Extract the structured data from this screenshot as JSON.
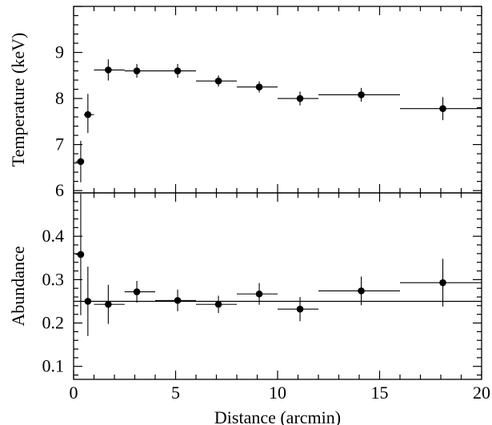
{
  "chart_data": [
    {
      "type": "scatter",
      "panel": "top",
      "ylabel": "Temperature (keV)",
      "xlabel": "",
      "xlim": [
        0,
        20
      ],
      "ylim": [
        5.95,
        10
      ],
      "yticks": [
        "6",
        "7",
        "8",
        "9"
      ],
      "points": [
        {
          "x": 0.35,
          "xerr": [
            0.25,
            0.15
          ],
          "y": 6.63,
          "yerr": [
            0.45,
            0.45
          ]
        },
        {
          "x": 0.7,
          "xerr": [
            0.2,
            0.3
          ],
          "y": 7.65,
          "yerr": [
            0.4,
            0.45
          ]
        },
        {
          "x": 1.7,
          "xerr": [
            0.7,
            0.8
          ],
          "y": 8.62,
          "yerr": [
            0.23,
            0.23
          ]
        },
        {
          "x": 3.1,
          "xerr": [
            0.6,
            0.9
          ],
          "y": 8.6,
          "yerr": [
            0.15,
            0.15
          ]
        },
        {
          "x": 5.1,
          "xerr": [
            1.1,
            0.9
          ],
          "y": 8.6,
          "yerr": [
            0.15,
            0.15
          ]
        },
        {
          "x": 7.1,
          "xerr": [
            1.1,
            0.9
          ],
          "y": 8.38,
          "yerr": [
            0.12,
            0.12
          ]
        },
        {
          "x": 9.1,
          "xerr": [
            1.1,
            0.9
          ],
          "y": 8.25,
          "yerr": [
            0.12,
            0.12
          ]
        },
        {
          "x": 11.1,
          "xerr": [
            1.1,
            0.9
          ],
          "y": 8.0,
          "yerr": [
            0.15,
            0.15
          ]
        },
        {
          "x": 14.1,
          "xerr": [
            2.1,
            1.9
          ],
          "y": 8.08,
          "yerr": [
            0.15,
            0.15
          ]
        },
        {
          "x": 18.1,
          "xerr": [
            2.1,
            1.9
          ],
          "y": 7.78,
          "yerr": [
            0.25,
            0.25
          ]
        }
      ]
    },
    {
      "type": "scatter",
      "panel": "bottom",
      "ylabel": "Abundance",
      "xlabel": "Distance (arcmin)",
      "xlim": [
        0,
        20
      ],
      "ylim": [
        0.07,
        0.5
      ],
      "xticks": [
        "0",
        "5",
        "10",
        "15",
        "20"
      ],
      "yticks": [
        "0.1",
        "0.2",
        "0.3",
        "0.4"
      ],
      "reference_line": 0.25,
      "points": [
        {
          "x": 0.35,
          "xerr": [
            0.25,
            0.15
          ],
          "y": 0.358,
          "yerr": [
            0.14,
            0.14
          ]
        },
        {
          "x": 0.7,
          "xerr": [
            0.2,
            0.3
          ],
          "y": 0.25,
          "yerr": [
            0.08,
            0.08
          ]
        },
        {
          "x": 1.7,
          "xerr": [
            0.7,
            0.8
          ],
          "y": 0.243,
          "yerr": [
            0.045,
            0.045
          ]
        },
        {
          "x": 3.1,
          "xerr": [
            0.6,
            0.9
          ],
          "y": 0.272,
          "yerr": [
            0.025,
            0.025
          ]
        },
        {
          "x": 5.1,
          "xerr": [
            1.1,
            0.9
          ],
          "y": 0.252,
          "yerr": [
            0.025,
            0.025
          ]
        },
        {
          "x": 7.1,
          "xerr": [
            1.1,
            0.9
          ],
          "y": 0.243,
          "yerr": [
            0.02,
            0.02
          ]
        },
        {
          "x": 9.1,
          "xerr": [
            1.1,
            0.9
          ],
          "y": 0.267,
          "yerr": [
            0.025,
            0.025
          ]
        },
        {
          "x": 11.1,
          "xerr": [
            1.1,
            0.9
          ],
          "y": 0.232,
          "yerr": [
            0.028,
            0.028
          ]
        },
        {
          "x": 14.1,
          "xerr": [
            2.1,
            1.9
          ],
          "y": 0.274,
          "yerr": [
            0.033,
            0.033
          ]
        },
        {
          "x": 18.1,
          "xerr": [
            2.1,
            1.9
          ],
          "y": 0.293,
          "yerr": [
            0.055,
            0.055
          ]
        }
      ]
    }
  ]
}
